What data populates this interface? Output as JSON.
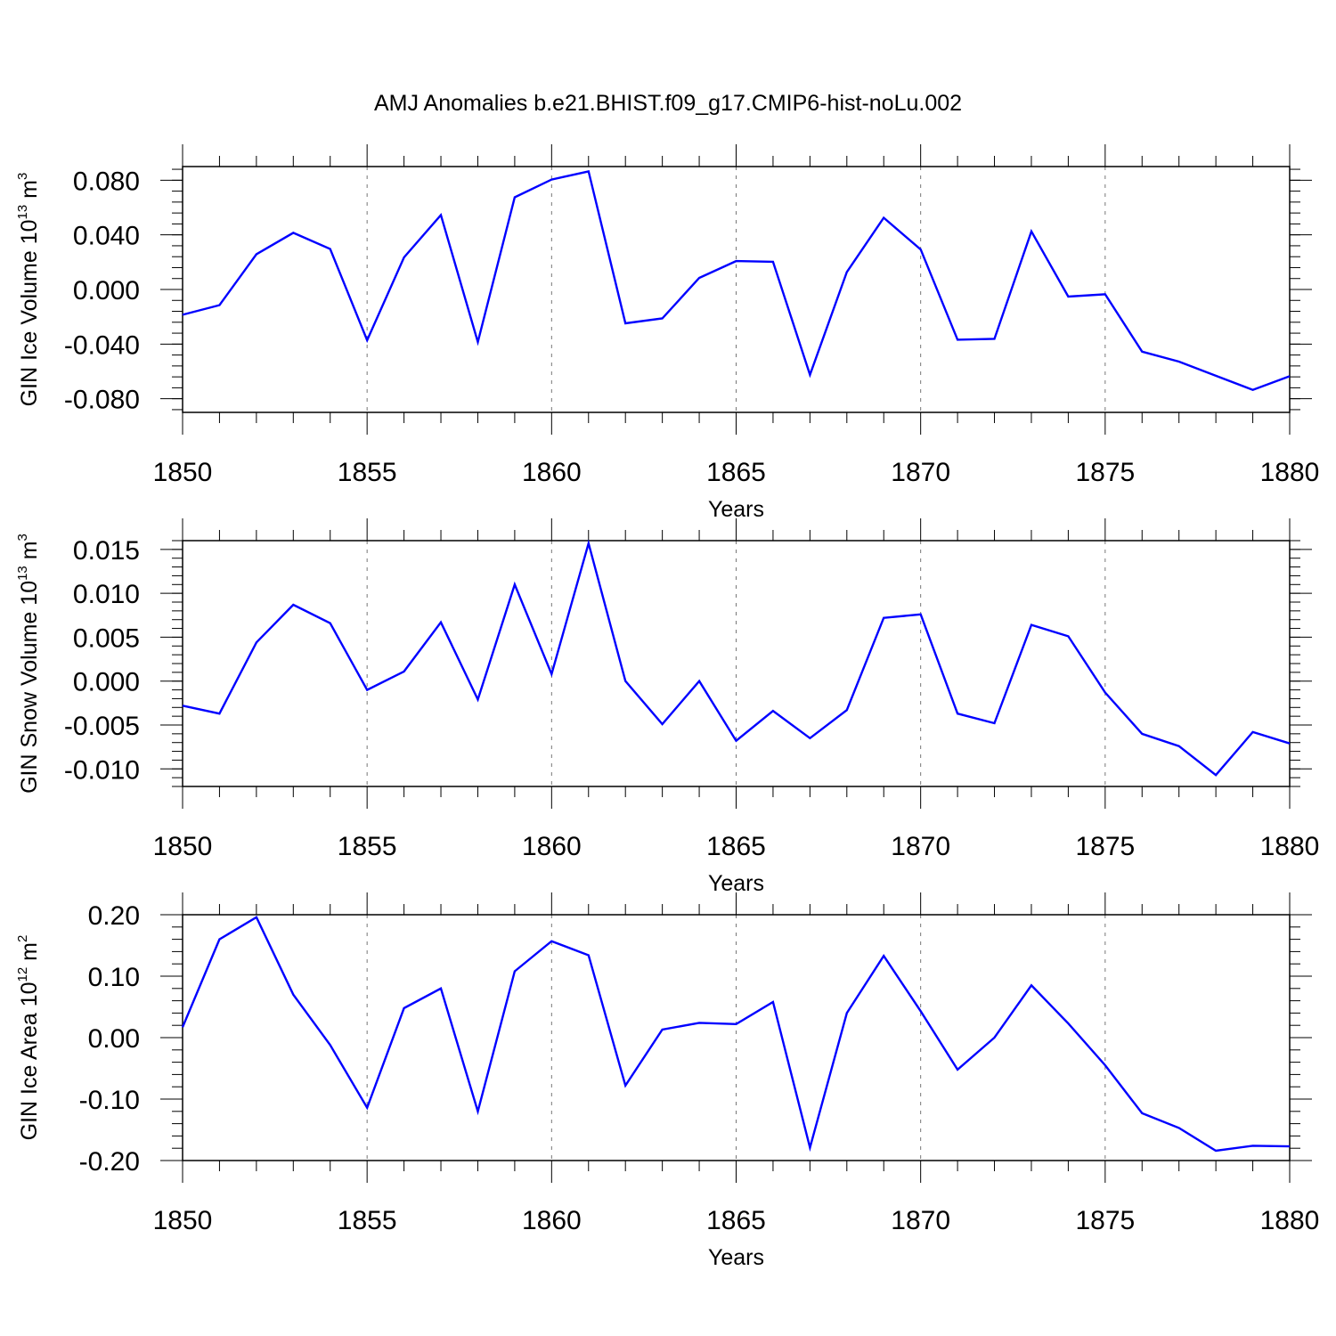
{
  "title": "AMJ Anomalies b.e21.BHIST.f09_g17.CMIP6-hist-noLu.002",
  "colors": {
    "line": "#0000ff",
    "axis": "#000000",
    "grid": "#777777"
  },
  "chart_data": [
    {
      "type": "line",
      "ylabel": {
        "base": "GIN Ice Volume 10",
        "exp": "13",
        "unit": " m",
        "unit_exp": "3"
      },
      "xlabel": "Years",
      "xlim": [
        1850,
        1880
      ],
      "ylim": [
        -0.09,
        0.09
      ],
      "xticks": [
        "1850",
        "1855",
        "1860",
        "1865",
        "1870",
        "1875",
        "1880"
      ],
      "yticks": [
        {
          "v": 0.08,
          "label": "0.080"
        },
        {
          "v": 0.04,
          "label": "0.040"
        },
        {
          "v": 0.0,
          "label": "0.000"
        },
        {
          "v": -0.04,
          "label": "-0.040"
        },
        {
          "v": -0.08,
          "label": "-0.080"
        }
      ],
      "yminor": 0.008,
      "x": [
        1850,
        1851,
        1852,
        1853,
        1854,
        1855,
        1856,
        1857,
        1858,
        1859,
        1860,
        1861,
        1862,
        1863,
        1864,
        1865,
        1866,
        1867,
        1868,
        1869,
        1870,
        1871,
        1872,
        1873,
        1874,
        1875,
        1876,
        1877,
        1878,
        1879,
        1880
      ],
      "values": [
        -0.0185,
        -0.0115,
        0.0258,
        0.0415,
        0.0297,
        -0.0372,
        0.0235,
        0.0545,
        -0.0385,
        0.0675,
        0.0805,
        0.0865,
        -0.0248,
        -0.0212,
        0.0085,
        0.0208,
        0.0203,
        -0.0625,
        0.0128,
        0.0525,
        0.0293,
        -0.0368,
        -0.0362,
        0.0425,
        -0.0052,
        -0.0035,
        -0.0455,
        -0.0528,
        -0.0632,
        -0.0735,
        -0.0635
      ]
    },
    {
      "type": "line",
      "ylabel": {
        "base": "GIN Snow Volume 10",
        "exp": "13",
        "unit": " m",
        "unit_exp": "3"
      },
      "xlabel": "Years",
      "xlim": [
        1850,
        1880
      ],
      "ylim": [
        -0.012,
        0.016
      ],
      "xticks": [
        "1850",
        "1855",
        "1860",
        "1865",
        "1870",
        "1875",
        "1880"
      ],
      "yticks": [
        {
          "v": 0.015,
          "label": "0.015"
        },
        {
          "v": 0.01,
          "label": "0.010"
        },
        {
          "v": 0.005,
          "label": "0.005"
        },
        {
          "v": 0.0,
          "label": "0.000"
        },
        {
          "v": -0.005,
          "label": "-0.005"
        },
        {
          "v": -0.01,
          "label": "-0.010"
        }
      ],
      "yminor": 0.001,
      "x": [
        1850,
        1851,
        1852,
        1853,
        1854,
        1855,
        1856,
        1857,
        1858,
        1859,
        1860,
        1861,
        1862,
        1863,
        1864,
        1865,
        1866,
        1867,
        1868,
        1869,
        1870,
        1871,
        1872,
        1873,
        1874,
        1875,
        1876,
        1877,
        1878,
        1879,
        1880
      ],
      "values": [
        -0.0028,
        -0.0037,
        0.0044,
        0.0087,
        0.0066,
        -0.001,
        0.0011,
        0.0067,
        -0.0021,
        0.011,
        0.0008,
        0.0157,
        0.0,
        -0.0049,
        0.0,
        -0.0068,
        -0.0034,
        -0.0065,
        -0.0033,
        0.0072,
        0.0076,
        -0.0037,
        -0.0048,
        0.0064,
        0.0051,
        -0.0013,
        -0.006,
        -0.0074,
        -0.0107,
        -0.0058,
        -0.0071
      ]
    },
    {
      "type": "line",
      "ylabel": {
        "base": "GIN Ice Area 10",
        "exp": "12",
        "unit": " m",
        "unit_exp": "2"
      },
      "xlabel": "Years",
      "xlim": [
        1850,
        1880
      ],
      "ylim": [
        -0.2,
        0.2
      ],
      "xticks": [
        "1850",
        "1855",
        "1860",
        "1865",
        "1870",
        "1875",
        "1880"
      ],
      "yticks": [
        {
          "v": 0.2,
          "label": "0.20"
        },
        {
          "v": 0.1,
          "label": "0.10"
        },
        {
          "v": 0.0,
          "label": "0.00"
        },
        {
          "v": -0.1,
          "label": "-0.10"
        },
        {
          "v": -0.2,
          "label": "-0.20"
        }
      ],
      "yminor": 0.02,
      "x": [
        1850,
        1851,
        1852,
        1853,
        1854,
        1855,
        1856,
        1857,
        1858,
        1859,
        1860,
        1861,
        1862,
        1863,
        1864,
        1865,
        1866,
        1867,
        1868,
        1869,
        1870,
        1871,
        1872,
        1873,
        1874,
        1875,
        1876,
        1877,
        1878,
        1879,
        1880
      ],
      "values": [
        0.017,
        0.16,
        0.196,
        0.07,
        -0.012,
        -0.114,
        0.048,
        0.08,
        -0.12,
        0.108,
        0.157,
        0.134,
        -0.078,
        0.013,
        0.024,
        0.022,
        0.058,
        -0.179,
        0.04,
        0.133,
        0.043,
        -0.052,
        0.0,
        0.085,
        0.023,
        -0.045,
        -0.123,
        -0.147,
        -0.184,
        -0.176,
        -0.177
      ]
    }
  ]
}
